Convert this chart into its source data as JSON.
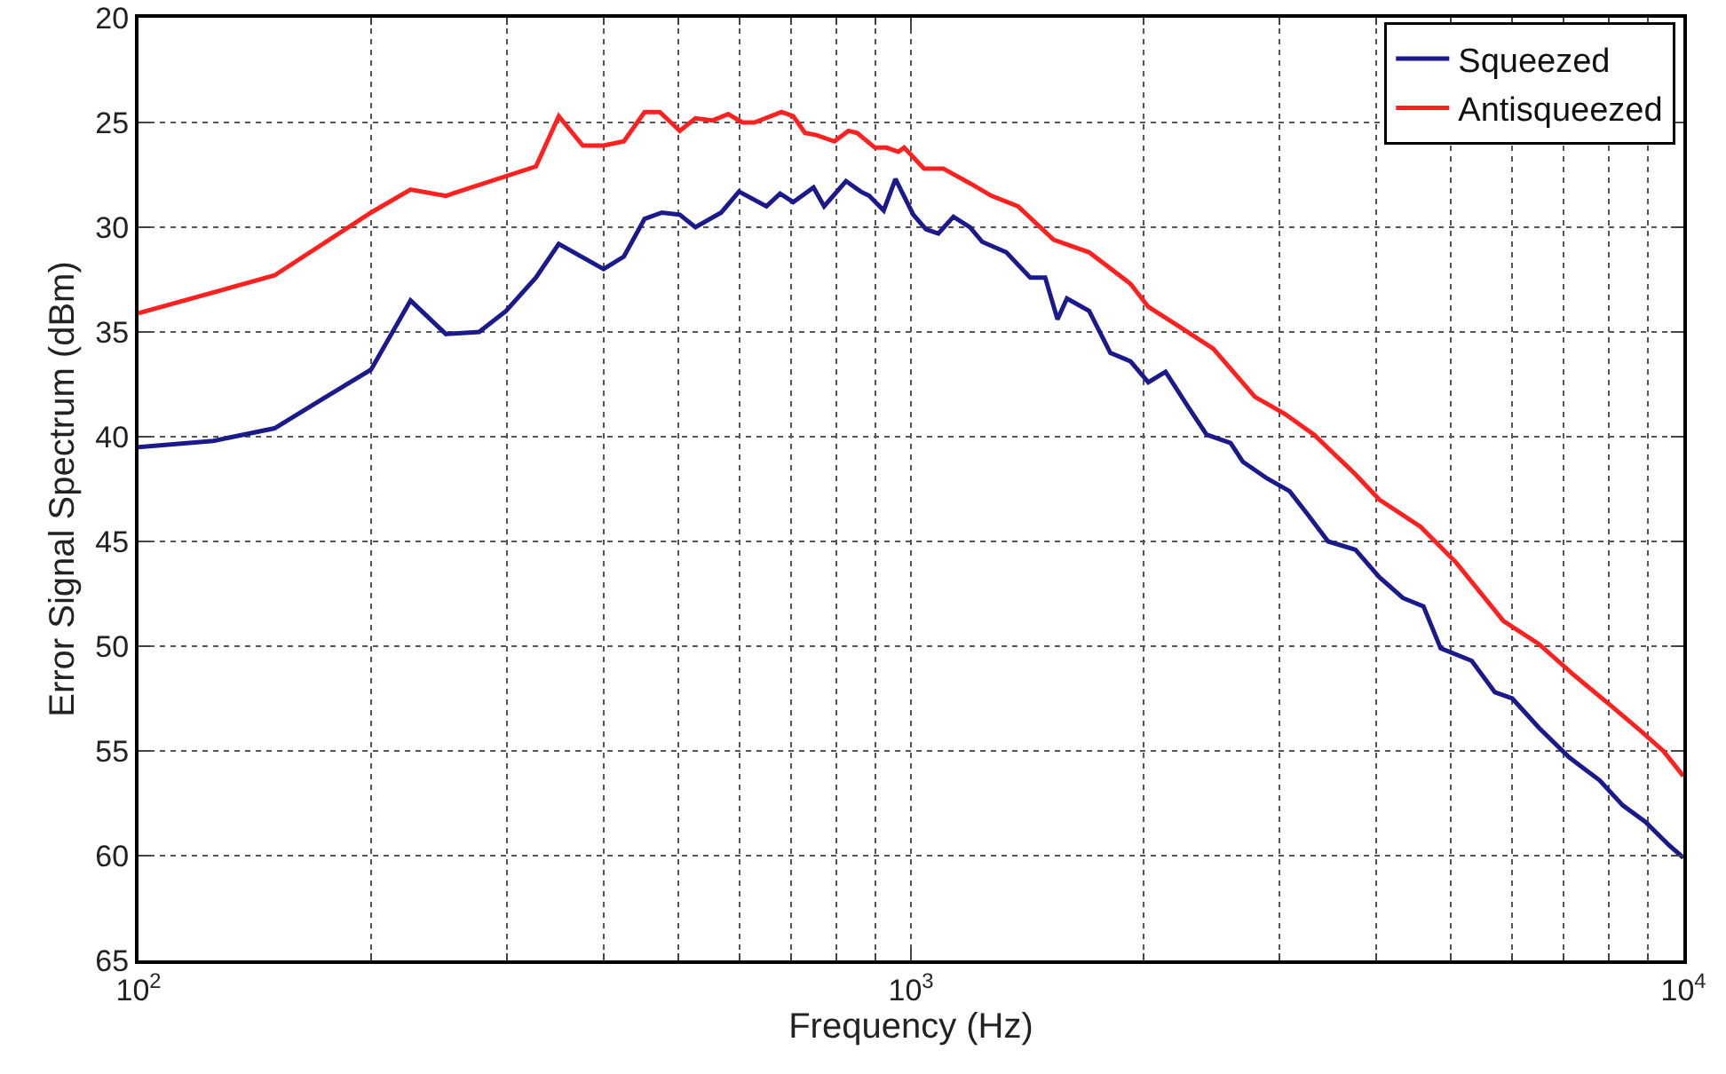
{
  "chart_data": {
    "type": "line",
    "xlabel": "Frequency (Hz)",
    "ylabel": "Error Signal Spectrum (dBm)",
    "log": "x",
    "grid": true,
    "legend": "top right",
    "line_style": "solid",
    "marker": "none",
    "xlim": [
      100,
      10000
    ],
    "xticks": [
      {
        "value": 100,
        "label": "10$^{2}$"
      },
      {
        "value": 1000,
        "label": "10$^{3}$"
      },
      {
        "value": 10000,
        "label": "10$^{4}$"
      }
    ],
    "ylim": [
      65,
      20
    ],
    "yticks": [
      20,
      25,
      30,
      35,
      40,
      45,
      50,
      55,
      60,
      65
    ],
    "series": [
      {
        "name": "Squeezed",
        "color": "#1a1a8c",
        "x": [
          100,
          125,
          150,
          173,
          200,
          225,
          250,
          276,
          299,
          327,
          350,
          400,
          425,
          452,
          476,
          502,
          526,
          568,
          599,
          650,
          677,
          704,
          748,
          772,
          824,
          861,
          883,
          922,
          955,
          1007,
          1046,
          1085,
          1135,
          1192,
          1237,
          1329,
          1427,
          1492,
          1548,
          1592,
          1701,
          1812,
          1924,
          2029,
          2136,
          2287,
          2414,
          2593,
          2690,
          2893,
          3092,
          3261,
          3468,
          3763,
          4039,
          4334,
          4608,
          4850,
          5321,
          5701,
          6006,
          6502,
          7110,
          7789,
          8347,
          8937,
          9580,
          10000
        ],
        "values": [
          40.5,
          40.2,
          39.6,
          38.2,
          36.8,
          33.5,
          35.1,
          35.0,
          34.0,
          32.4,
          30.8,
          32.0,
          31.4,
          29.6,
          29.3,
          29.4,
          30.0,
          29.3,
          28.3,
          29.0,
          28.4,
          28.8,
          28.1,
          29.0,
          27.8,
          28.3,
          28.5,
          29.2,
          27.7,
          29.4,
          30.1,
          30.3,
          29.5,
          30.0,
          30.7,
          31.2,
          32.4,
          32.4,
          34.4,
          33.4,
          34.0,
          36.0,
          36.4,
          37.4,
          36.9,
          38.6,
          39.9,
          40.3,
          41.2,
          42.0,
          42.6,
          43.7,
          45.0,
          45.4,
          46.7,
          47.7,
          48.1,
          50.1,
          50.7,
          52.2,
          52.5,
          53.9,
          55.3,
          56.4,
          57.6,
          58.4,
          59.5,
          60.1
        ]
      },
      {
        "name": "Antisqueezed",
        "color": "#ff2020",
        "x": [
          100,
          150,
          200,
          225,
          250,
          327,
          350,
          376,
          400,
          425,
          452,
          473,
          502,
          526,
          554,
          580,
          605,
          627,
          680,
          704,
          729,
          754,
          796,
          830,
          852,
          898,
          930,
          963,
          980,
          1040,
          1101,
          1192,
          1271,
          1376,
          1530,
          1701,
          1924,
          2029,
          2216,
          2463,
          2788,
          3045,
          3325,
          3763,
          4039,
          4568,
          5077,
          5848,
          6502,
          7228,
          8035,
          8777,
          9418,
          10000
        ],
        "values": [
          34.1,
          32.3,
          29.3,
          28.2,
          28.5,
          27.1,
          24.7,
          26.1,
          26.1,
          25.9,
          24.5,
          24.5,
          25.4,
          24.8,
          24.9,
          24.6,
          25.0,
          25.0,
          24.5,
          24.7,
          25.5,
          25.6,
          25.9,
          25.4,
          25.5,
          26.2,
          26.2,
          26.4,
          26.2,
          27.2,
          27.2,
          27.9,
          28.5,
          29.0,
          30.6,
          31.2,
          32.7,
          33.8,
          34.7,
          35.8,
          38.1,
          38.9,
          39.9,
          41.8,
          43.0,
          44.3,
          46.0,
          48.8,
          49.9,
          51.4,
          52.8,
          54.0,
          55.0,
          56.2
        ]
      }
    ]
  }
}
